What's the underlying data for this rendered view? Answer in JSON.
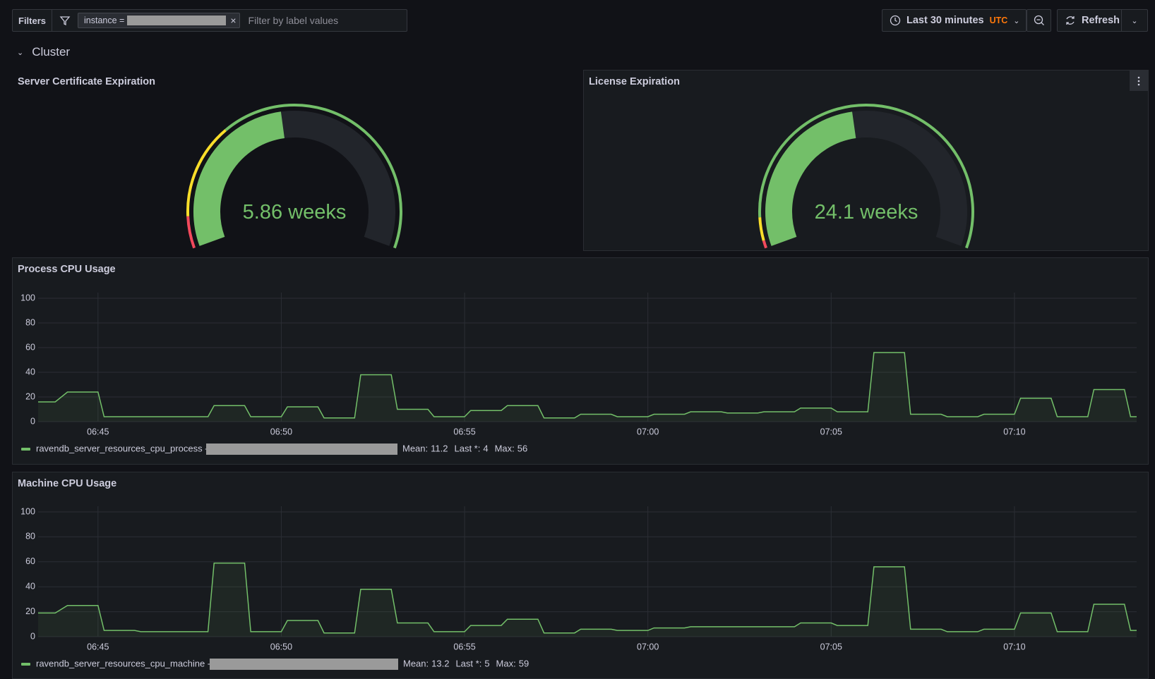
{
  "toolbar": {
    "filters_label": "Filters",
    "filter_key": "instance =",
    "filter_placeholder": "Filter by label values",
    "time_range": "Last 30 minutes",
    "timezone": "UTC",
    "refresh": "Refresh"
  },
  "row": {
    "title": "Cluster"
  },
  "chart_data": [
    {
      "type": "gauge",
      "title": "Server Certificate Expiration",
      "value": 5.86,
      "unit": "weeks",
      "min": 0,
      "max": 12.6,
      "color": "#73bf69",
      "thresholds": [
        {
          "from": 0,
          "color": "#f2495c"
        },
        {
          "from": 1,
          "color": "#fade2a"
        },
        {
          "from": 4,
          "color": "#73bf69"
        }
      ]
    },
    {
      "type": "gauge",
      "title": "License Expiration",
      "value": 24.1,
      "unit": "weeks",
      "min": 0,
      "max": 52,
      "color": "#73bf69",
      "thresholds": [
        {
          "from": 0,
          "color": "#f2495c"
        },
        {
          "from": 1,
          "color": "#fade2a"
        },
        {
          "from": 4,
          "color": "#73bf69"
        }
      ]
    },
    {
      "type": "line",
      "title": "Process CPU Usage",
      "grid": true,
      "x": [
        "06:43:22",
        "06:43:50",
        "06:44:10",
        "06:45:00",
        "06:45:10",
        "06:48:00",
        "06:48:10",
        "06:49:00",
        "06:49:10",
        "06:50:00",
        "06:50:10",
        "06:51:00",
        "06:51:10",
        "06:52:00",
        "06:52:10",
        "06:53:00",
        "06:53:10",
        "06:54:00",
        "06:54:10",
        "06:55:00",
        "06:55:10",
        "06:56:00",
        "06:56:10",
        "06:57:00",
        "06:57:10",
        "06:58:00",
        "06:58:10",
        "06:59:00",
        "06:59:10",
        "07:00:00",
        "07:00:10",
        "07:01:00",
        "07:01:10",
        "07:02:00",
        "07:02:10",
        "07:03:00",
        "07:03:10",
        "07:04:00",
        "07:04:10",
        "07:05:00",
        "07:05:10",
        "07:06:00",
        "07:06:10",
        "07:07:00",
        "07:07:10",
        "07:08:00",
        "07:08:10",
        "07:09:00",
        "07:09:10",
        "07:10:00",
        "07:10:10",
        "07:11:00",
        "07:11:10",
        "07:12:00",
        "07:12:10",
        "07:13:00",
        "07:13:10",
        "07:13:20"
      ],
      "xlim": [
        "06:43:22",
        "07:13:20"
      ],
      "xticks": [
        "06:45",
        "06:50",
        "06:55",
        "07:00",
        "07:05",
        "07:10"
      ],
      "ylim": [
        0,
        100
      ],
      "yticks": [
        0,
        20,
        40,
        60,
        80,
        100
      ],
      "series": [
        {
          "name": "ravendb_server_resources_cpu_process -",
          "color": "#73bf69",
          "values": [
            16,
            16,
            24,
            24,
            4,
            4,
            13,
            13,
            4,
            4,
            12,
            12,
            3,
            3,
            38,
            38,
            10,
            10,
            4,
            4,
            9,
            9,
            13,
            13,
            3,
            3,
            6,
            6,
            4,
            4,
            6,
            6,
            8,
            8,
            7,
            7,
            8,
            8,
            11,
            11,
            8,
            8,
            56,
            56,
            6,
            6,
            4,
            4,
            6,
            6,
            19,
            19,
            4,
            4,
            26,
            26,
            4,
            4
          ],
          "stats": [
            {
              "label": "Mean:",
              "value": 11.2
            },
            {
              "label": "Last *:",
              "value": 4
            },
            {
              "label": "Max:",
              "value": 56
            }
          ]
        }
      ]
    },
    {
      "type": "line",
      "title": "Machine CPU Usage",
      "grid": true,
      "x": [
        "06:43:22",
        "06:43:50",
        "06:44:10",
        "06:45:00",
        "06:45:10",
        "06:46:00",
        "06:46:10",
        "06:48:00",
        "06:48:10",
        "06:49:00",
        "06:49:10",
        "06:50:00",
        "06:50:10",
        "06:51:00",
        "06:51:10",
        "06:52:00",
        "06:52:10",
        "06:53:00",
        "06:53:10",
        "06:54:00",
        "06:54:10",
        "06:55:00",
        "06:55:10",
        "06:56:00",
        "06:56:10",
        "06:57:00",
        "06:57:10",
        "06:58:00",
        "06:58:10",
        "06:59:00",
        "06:59:10",
        "07:00:00",
        "07:00:10",
        "07:01:00",
        "07:01:10",
        "07:04:00",
        "07:04:10",
        "07:05:00",
        "07:05:10",
        "07:06:00",
        "07:06:10",
        "07:07:00",
        "07:07:10",
        "07:08:00",
        "07:08:10",
        "07:09:00",
        "07:09:10",
        "07:10:00",
        "07:10:10",
        "07:11:00",
        "07:11:10",
        "07:12:00",
        "07:12:10",
        "07:13:00",
        "07:13:10",
        "07:13:20"
      ],
      "xlim": [
        "06:43:22",
        "07:13:20"
      ],
      "xticks": [
        "06:45",
        "06:50",
        "06:55",
        "07:00",
        "07:05",
        "07:10"
      ],
      "ylim": [
        0,
        100
      ],
      "yticks": [
        0,
        20,
        40,
        60,
        80,
        100
      ],
      "series": [
        {
          "name": "ravendb_server_resources_cpu_machine -",
          "color": "#73bf69",
          "values": [
            19,
            19,
            25,
            25,
            5,
            5,
            4,
            4,
            59,
            59,
            4,
            4,
            13,
            13,
            3,
            3,
            38,
            38,
            11,
            11,
            4,
            4,
            9,
            9,
            14,
            14,
            3,
            3,
            6,
            6,
            5,
            5,
            7,
            7,
            8,
            8,
            11,
            11,
            9,
            9,
            56,
            56,
            6,
            6,
            4,
            4,
            6,
            6,
            19,
            19,
            4,
            4,
            26,
            26,
            5,
            5
          ],
          "stats": [
            {
              "label": "Mean:",
              "value": 13.2
            },
            {
              "label": "Last *:",
              "value": 5
            },
            {
              "label": "Max:",
              "value": 59
            }
          ]
        }
      ]
    }
  ]
}
